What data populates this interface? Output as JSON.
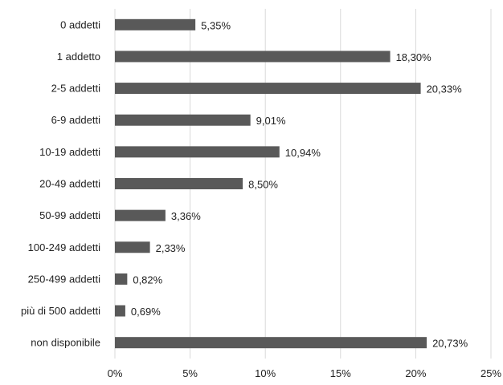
{
  "chart_data": {
    "type": "bar",
    "orientation": "horizontal",
    "categories": [
      "0 addetti",
      "1 addetto",
      "2-5 addetti",
      "6-9 addetti",
      "10-19 addetti",
      "20-49 addetti",
      "50-99 addetti",
      "100-249 addetti",
      "250-499 addetti",
      "più di 500 addetti",
      "non disponibile"
    ],
    "values": [
      5.35,
      18.3,
      20.33,
      9.01,
      10.94,
      8.5,
      3.36,
      2.33,
      0.82,
      0.69,
      20.73
    ],
    "data_labels": [
      "5,35%",
      "18,30%",
      "20,33%",
      "9,01%",
      "10,94%",
      "8,50%",
      "3,36%",
      "2,33%",
      "0,82%",
      "0,69%",
      "20,73%"
    ],
    "x_ticks": [
      0,
      5,
      10,
      15,
      20,
      25
    ],
    "x_tick_labels": [
      "0%",
      "5%",
      "10%",
      "15%",
      "20%",
      "25%"
    ],
    "xlim": [
      0,
      25
    ],
    "grid": "vertical",
    "legend": "none",
    "bar_color": "#595959",
    "grid_color": "#d9d9d9",
    "title": "",
    "xlabel": "",
    "ylabel": ""
  }
}
